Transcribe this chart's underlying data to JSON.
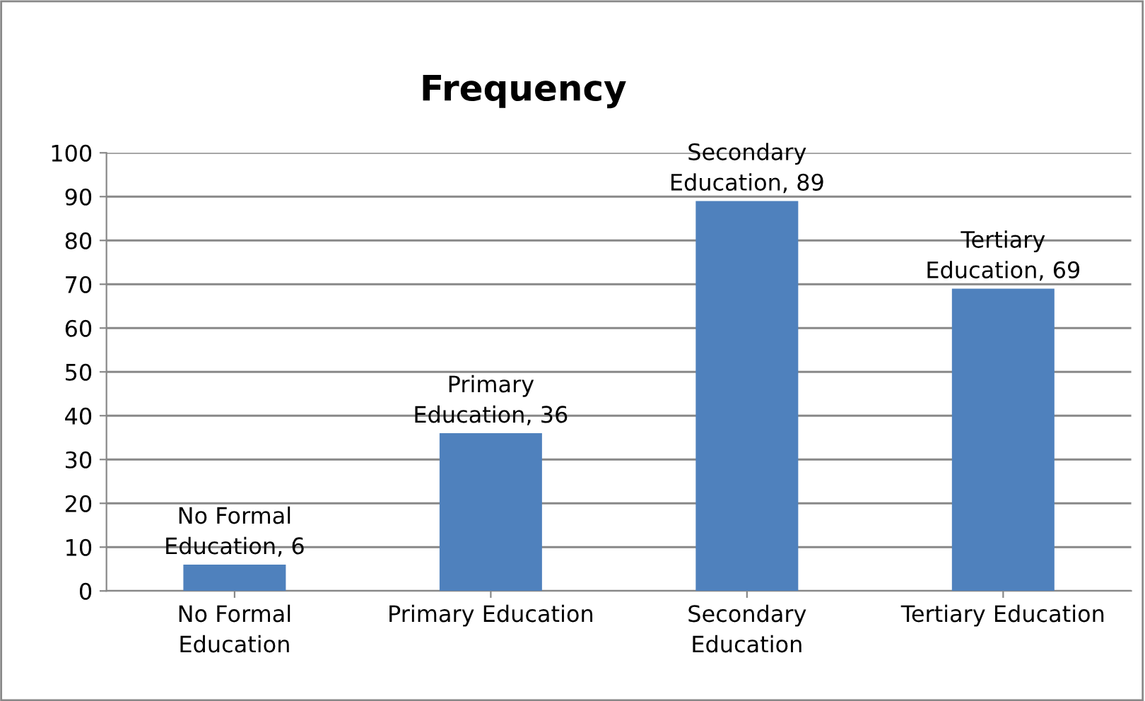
{
  "chart_data": {
    "type": "bar",
    "title": "Frequency",
    "categories": [
      "No Formal\nEducation",
      "Primary Education",
      "Secondary\nEducation",
      "Tertiary Education"
    ],
    "values": [
      6,
      36,
      89,
      69
    ],
    "value_labels": [
      "No Formal\nEducation, 6",
      "Primary\nEducation, 36",
      "Secondary\nEducation, 89",
      "Tertiary\nEducation, 69"
    ],
    "color": "#4f81bd",
    "ylim": [
      0,
      100
    ],
    "yticks": [
      0,
      10,
      20,
      30,
      40,
      50,
      60,
      70,
      80,
      90,
      100
    ],
    "grid": "y",
    "legend": false
  }
}
